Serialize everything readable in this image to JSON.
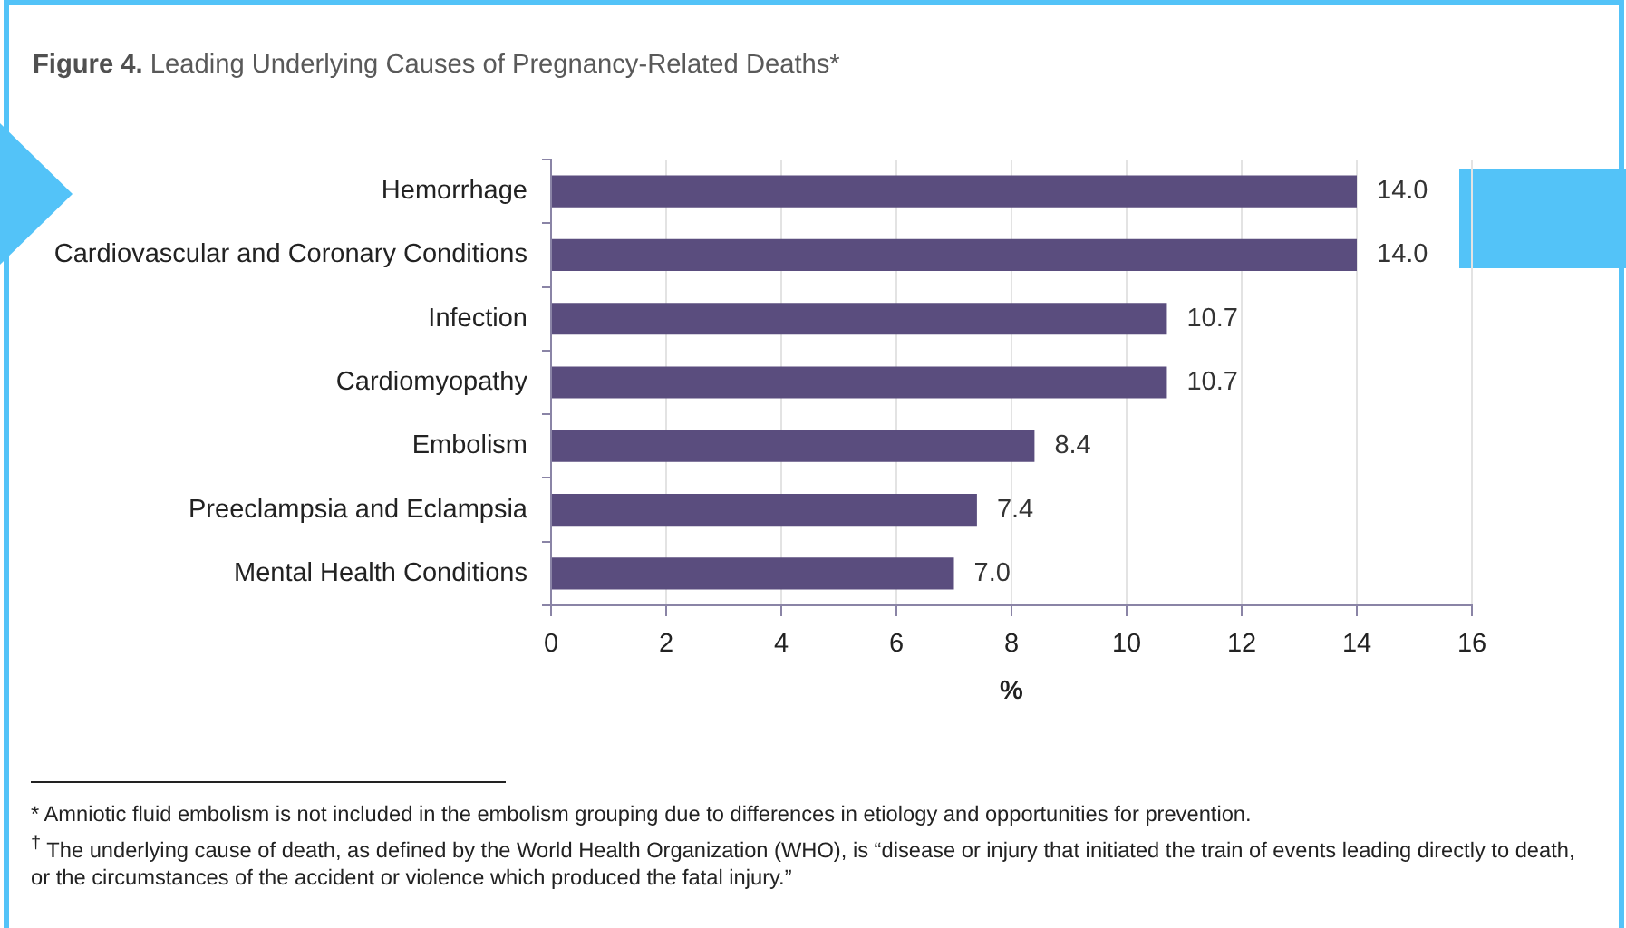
{
  "chart_data": {
    "type": "bar",
    "orientation": "horizontal",
    "title": "Figure 4. Leading Underlying Causes of Pregnancy-Related Deaths*",
    "xlabel": "%",
    "categories": [
      "Hemorrhage",
      "Cardiovascular and Coronary Conditions",
      "Infection",
      "Cardiomyopathy",
      "Embolism",
      "Preeclampsia and Eclampsia",
      "Mental Health Conditions"
    ],
    "values": [
      14.0,
      14.0,
      10.7,
      10.7,
      8.4,
      7.4,
      7.0
    ],
    "value_labels": [
      "14.0",
      "14.0",
      "10.7",
      "10.7",
      "8.4",
      "7.4",
      "7.0"
    ],
    "color": "#5a4d7e",
    "xlim": [
      0,
      16
    ],
    "xticks": [
      0,
      2,
      4,
      6,
      8,
      10,
      12,
      14,
      16
    ],
    "grid": "x",
    "annotations": [
      "* Amniotic fluid embolism is not included in the embolism grouping due to differences in etiology and opportunities for prevention.",
      "$^{†}$ The underlying cause of death, as defined by the World Health Organization (WHO), is “disease or injury that initiated the train of events leading directly to death, or the circumstances of the accident or violence which produced the fatal injury.”"
    ]
  }
}
